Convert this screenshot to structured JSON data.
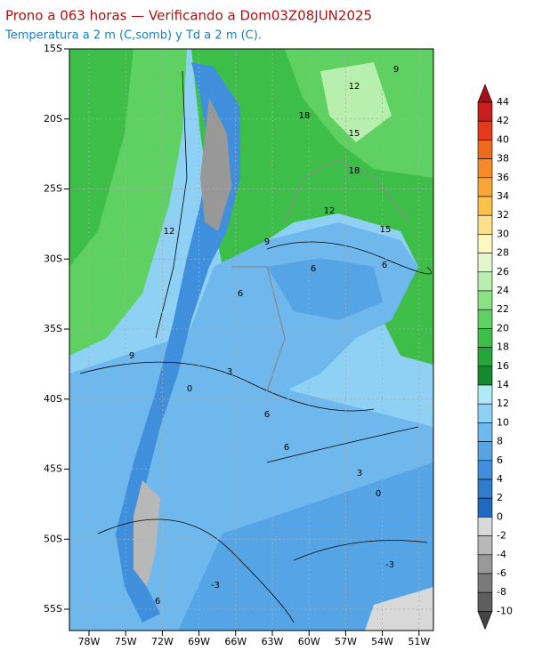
{
  "header": {
    "title": "Prono a 063 horas — Verificando a Dom03Z08JUN2025",
    "subtitle": "Temperatura a 2 m (C,somb) y Td a 2 m (C)."
  },
  "map": {
    "lat_labels": [
      "15S",
      "20S",
      "25S",
      "30S",
      "35S",
      "40S",
      "45S",
      "50S",
      "55S"
    ],
    "lon_labels": [
      "78W",
      "75W",
      "72W",
      "69W",
      "66W",
      "63W",
      "60W",
      "57W",
      "54W",
      "51W"
    ],
    "contour_labels": [
      "9",
      "12",
      "18",
      "15",
      "18",
      "12",
      "15",
      "12",
      "9",
      "6",
      "6",
      "6",
      "9",
      "3",
      "0",
      "6",
      "6",
      "3",
      "0",
      "-3",
      "-3",
      "6"
    ]
  },
  "colorbar": {
    "levels": [
      44,
      42,
      40,
      38,
      36,
      34,
      32,
      30,
      28,
      26,
      24,
      22,
      20,
      18,
      16,
      14,
      12,
      10,
      8,
      6,
      4,
      2,
      0,
      -2,
      -4,
      -6,
      -8,
      -10
    ],
    "colors": [
      "#a50f15",
      "#c81e1e",
      "#e33a1a",
      "#f06a1e",
      "#f58a26",
      "#f9a638",
      "#fbc24a",
      "#fde08a",
      "#fdf8c0",
      "#e0f7d0",
      "#b9efae",
      "#8be284",
      "#5fd162",
      "#3dbe48",
      "#25a53a",
      "#148a2e",
      "#aeeaf7",
      "#8fd0f5",
      "#6fb8ee",
      "#55a4e6",
      "#3f8fdc",
      "#2f7ccf",
      "#1e6ac0",
      "#d8d8d8",
      "#b8b8b8",
      "#989898",
      "#7a7a7a",
      "#5e5e5e",
      "#444444"
    ]
  }
}
